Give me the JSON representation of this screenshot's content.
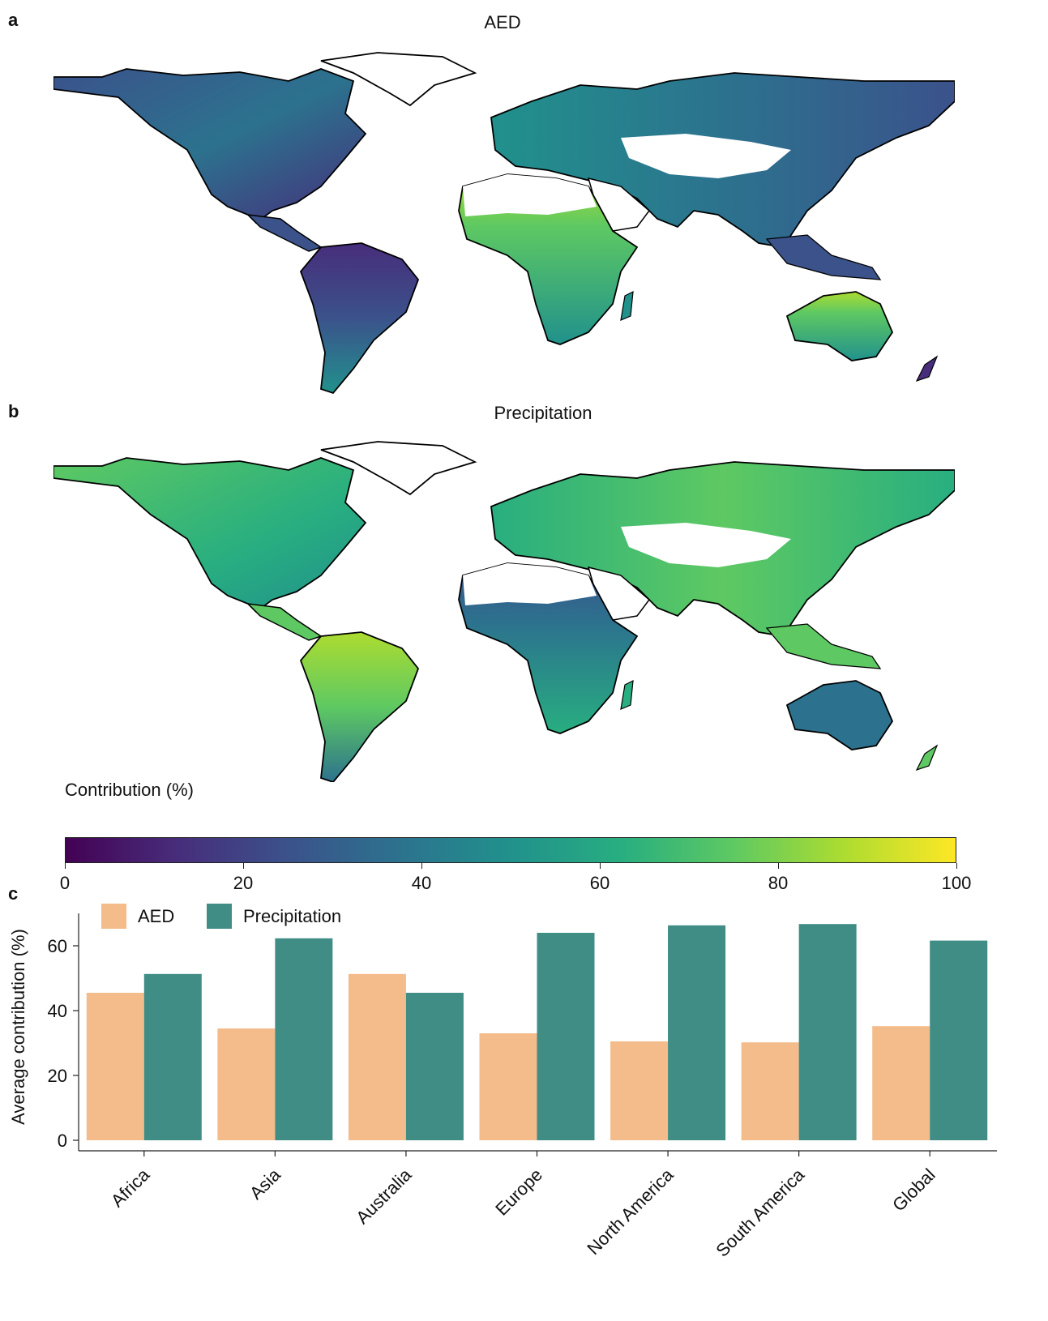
{
  "panels": {
    "a": {
      "letter": "a",
      "title": "AED"
    },
    "b": {
      "letter": "b",
      "title": "Precipitation"
    },
    "c": {
      "letter": "c"
    }
  },
  "colorbar": {
    "label": "Contribution (%)",
    "ticks": [
      "0",
      "20",
      "40",
      "60",
      "80",
      "100"
    ],
    "colormap": [
      "#440154",
      "#472d7b",
      "#3b528b",
      "#2c728e",
      "#21918c",
      "#28ae80",
      "#5ec962",
      "#addc30",
      "#fde725"
    ]
  },
  "chart_data": {
    "type": "bar",
    "categories": [
      "Africa",
      "Asia",
      "Australia",
      "Europe",
      "North America",
      "South America",
      "Global"
    ],
    "series": [
      {
        "name": "AED",
        "values": [
          45.5,
          34.5,
          51.3,
          33,
          30.5,
          30.2,
          35.2
        ],
        "color": "#f4bb8b"
      },
      {
        "name": "Precipitation",
        "values": [
          51.3,
          62.3,
          45.5,
          64,
          66.3,
          66.7,
          61.6
        ],
        "color": "#3f8d85"
      }
    ],
    "ylabel": "Average contribution (%)",
    "yticks": [
      0,
      20,
      40,
      60
    ],
    "ylim": [
      0,
      70
    ],
    "legend_position": "top-left"
  }
}
